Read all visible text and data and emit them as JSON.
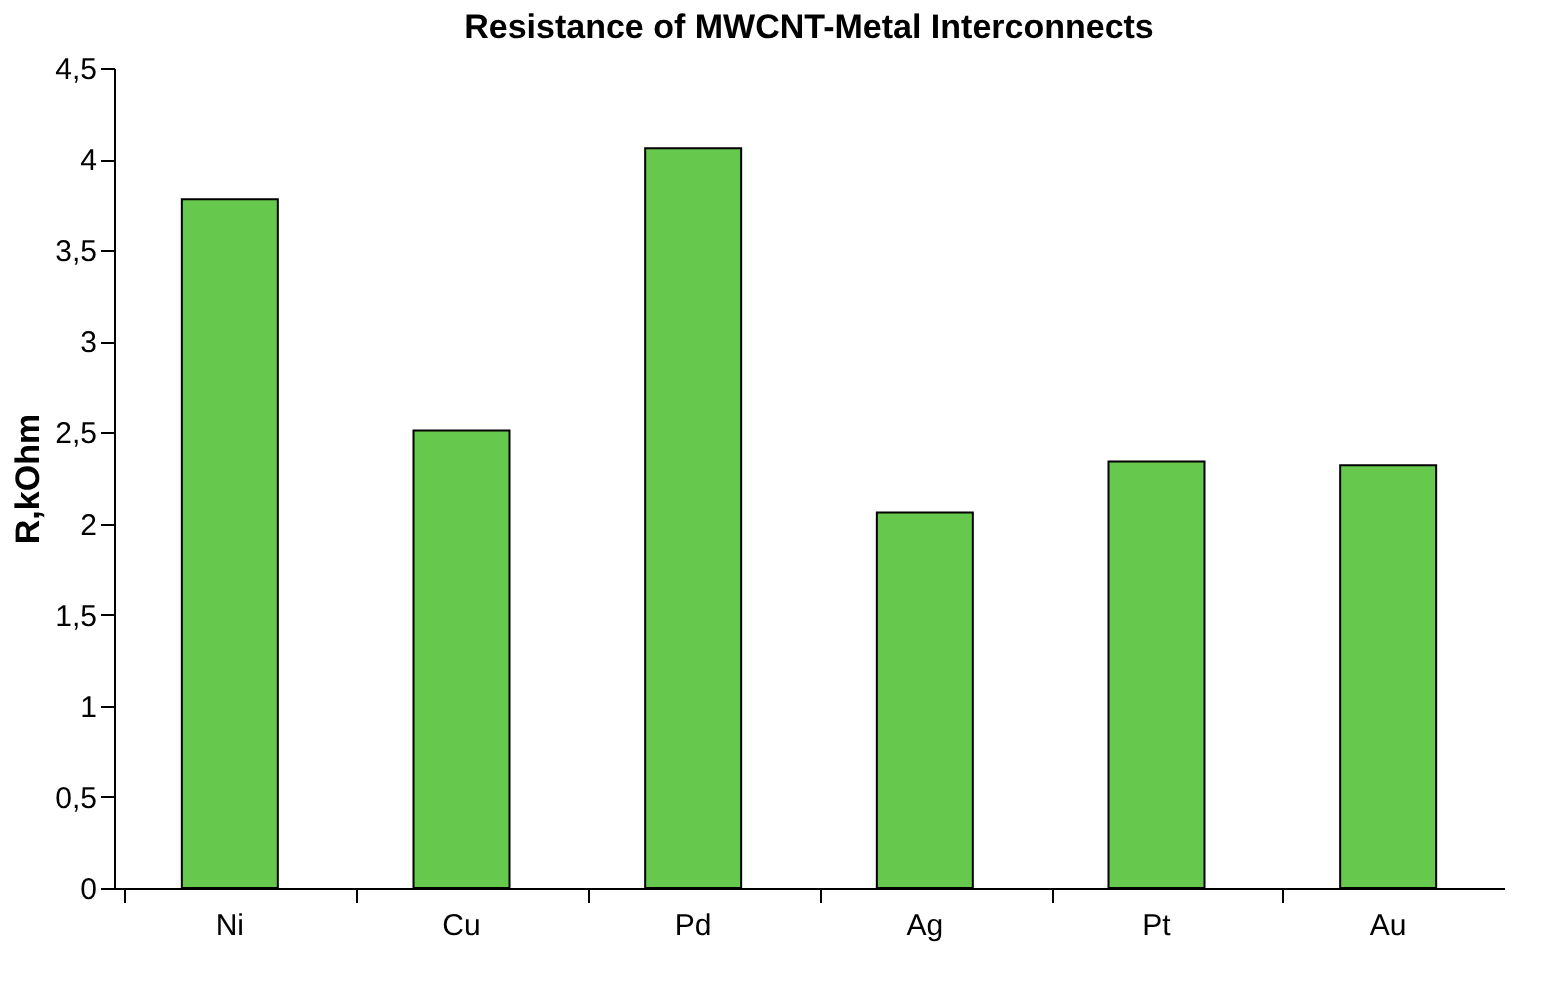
{
  "chart_data": {
    "type": "bar",
    "title": "Resistance of MWCNT-Metal Interconnects",
    "ylabel": "R,kOhm",
    "categories": [
      "Ni",
      "Cu",
      "Pd",
      "Ag",
      "Pt",
      "Au"
    ],
    "values": [
      3.78,
      2.51,
      4.06,
      2.06,
      2.34,
      2.32
    ],
    "color": "#66c84c",
    "ylim": [
      0,
      4.5
    ],
    "yticks": [
      0,
      {
        "value": 0.5,
        "label": "0,5"
      },
      1,
      {
        "value": 1.5,
        "label": "1,5"
      },
      2,
      {
        "value": 2.5,
        "label": "2,5"
      },
      3,
      {
        "value": 3.5,
        "label": "3,5"
      },
      4,
      {
        "value": 4.5,
        "label": "4,5"
      }
    ],
    "grid": false
  }
}
